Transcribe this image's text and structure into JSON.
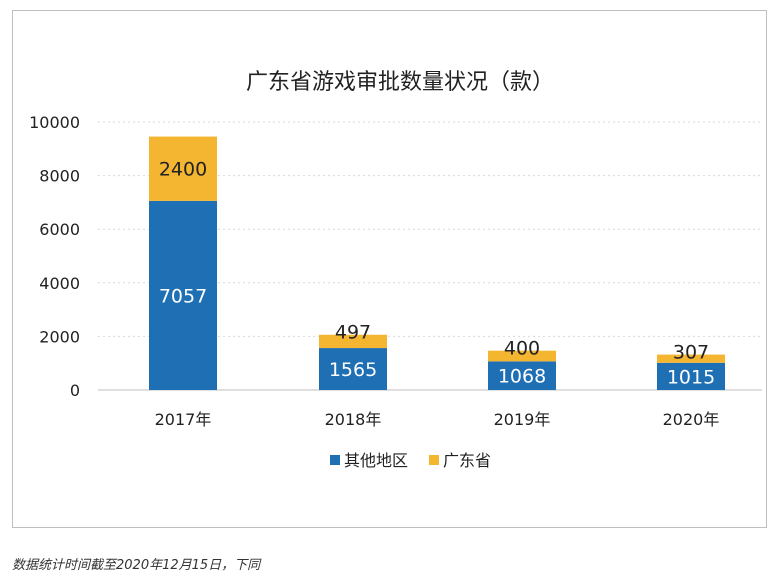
{
  "chart_data": {
    "type": "bar",
    "stacked": true,
    "title": "广东省游戏审批数量状况（款）",
    "categories": [
      "2017年",
      "2018年",
      "2019年",
      "2020年"
    ],
    "series": [
      {
        "name": "其他地区",
        "color": "#1f6fb4",
        "values": [
          7057,
          1565,
          1068,
          1015
        ]
      },
      {
        "name": "广东省",
        "color": "#f4b531",
        "values": [
          2400,
          497,
          400,
          307
        ]
      }
    ],
    "ylim": [
      0,
      10000
    ],
    "yticks": [
      "0",
      "2000",
      "4000",
      "6000",
      "8000",
      "10000"
    ],
    "grid": true,
    "legend": "bottom"
  },
  "footnote": "数据统计时间截至2020年12月15日，下同"
}
